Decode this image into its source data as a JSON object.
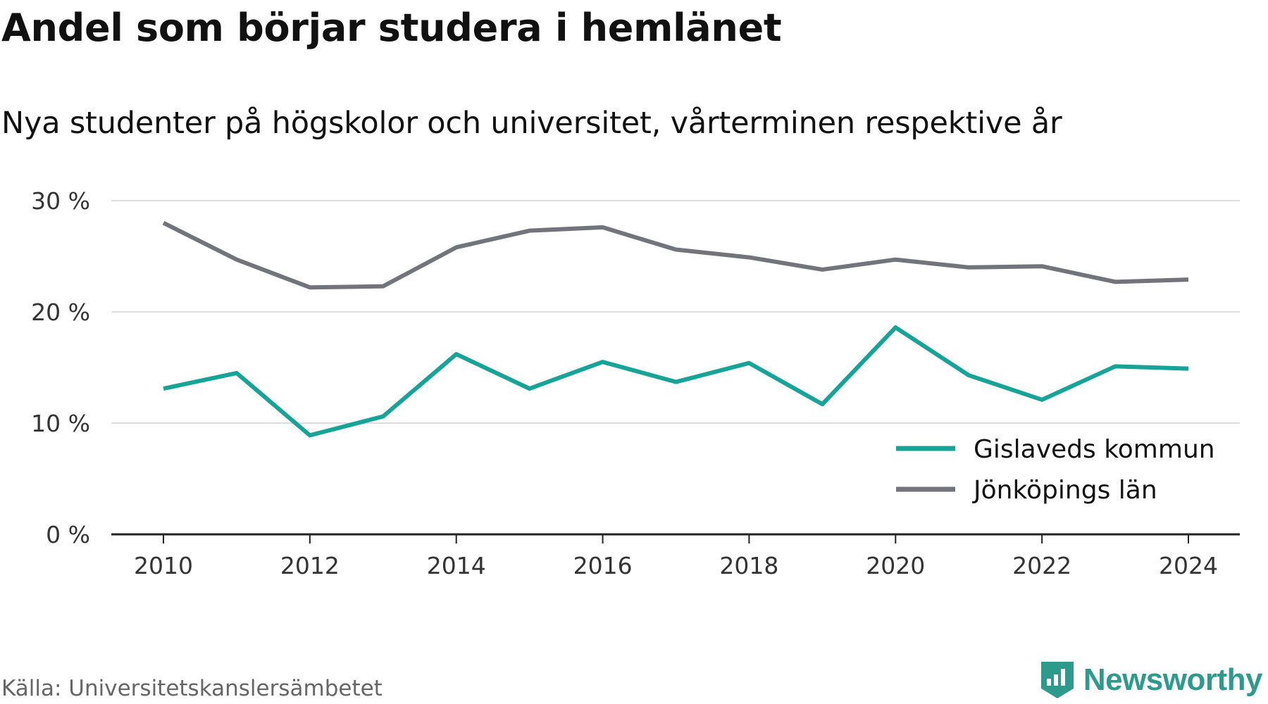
{
  "title": "Andel som börjar studera i hemlänet",
  "subtitle": "Nya studenter på högskolor och universitet, vårterminen respektive år",
  "source": "Källa: Universitetskanslersämbetet",
  "brand": {
    "name": "Newsworthy",
    "icon": "newsworthy-logo-icon",
    "color": "#2e9a8c"
  },
  "chart_data": {
    "type": "line",
    "x": [
      2010,
      2011,
      2012,
      2013,
      2014,
      2015,
      2016,
      2017,
      2018,
      2019,
      2020,
      2021,
      2022,
      2023,
      2024
    ],
    "x_tick_labels": [
      "2010",
      "2012",
      "2014",
      "2016",
      "2018",
      "2020",
      "2022",
      "2024"
    ],
    "y_tick_labels": [
      "0 %",
      "10 %",
      "20 %",
      "30 %"
    ],
    "y_ticks": [
      0,
      10,
      20,
      30
    ],
    "ylim": [
      0,
      30
    ],
    "grid": true,
    "legend_position": "bottom-right",
    "series": [
      {
        "name": "Gislaveds kommun",
        "color": "#16a398",
        "values": [
          13.1,
          14.5,
          8.9,
          10.6,
          16.2,
          13.1,
          15.5,
          13.7,
          15.4,
          11.7,
          18.6,
          14.3,
          12.1,
          15.1,
          14.9
        ]
      },
      {
        "name": "Jönköpings län",
        "color": "#73737b",
        "values": [
          28.0,
          24.7,
          22.2,
          22.3,
          25.8,
          27.3,
          27.6,
          25.6,
          24.9,
          23.8,
          24.7,
          24.0,
          24.1,
          22.7,
          22.9
        ]
      }
    ]
  }
}
